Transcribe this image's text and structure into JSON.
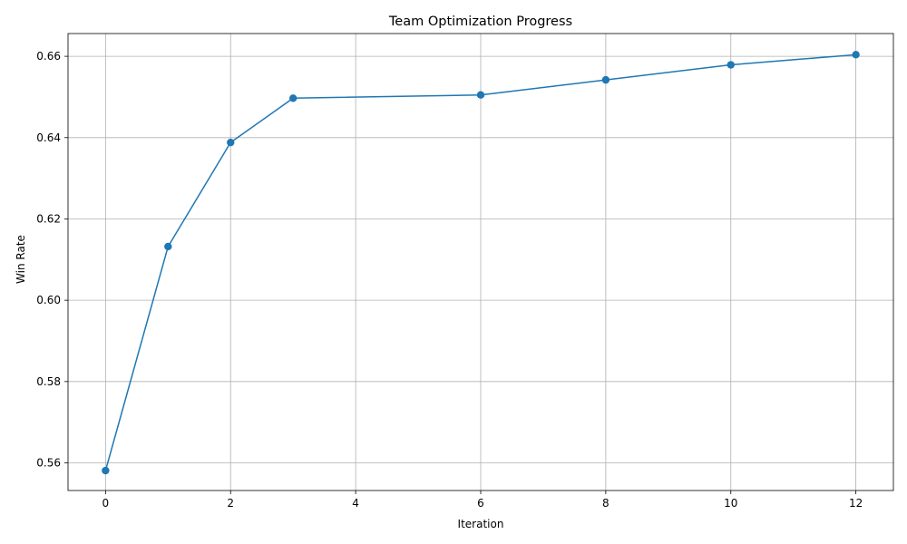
{
  "chart_data": {
    "type": "line",
    "title": "Team Optimization Progress",
    "xlabel": "Iteration",
    "ylabel": "Win Rate",
    "xlim": [
      -0.6,
      12.6
    ],
    "ylim": [
      0.5532,
      0.6656
    ],
    "xticks": [
      0,
      2,
      4,
      6,
      8,
      10,
      12
    ],
    "yticks": [
      0.56,
      0.58,
      0.6,
      0.62,
      0.64,
      0.66
    ],
    "xtick_labels": [
      "0",
      "2",
      "4",
      "6",
      "8",
      "10",
      "12"
    ],
    "ytick_labels": [
      "0.56",
      "0.58",
      "0.60",
      "0.62",
      "0.64",
      "0.66"
    ],
    "grid": true,
    "legend": false,
    "series": [
      {
        "x": [
          0,
          1,
          2,
          3,
          6,
          8,
          10,
          12
        ],
        "values": [
          0.5581,
          0.6132,
          0.6388,
          0.6497,
          0.6505,
          0.6542,
          0.6579,
          0.6604
        ],
        "color": "#1f77b4",
        "marker": "circle"
      }
    ]
  }
}
